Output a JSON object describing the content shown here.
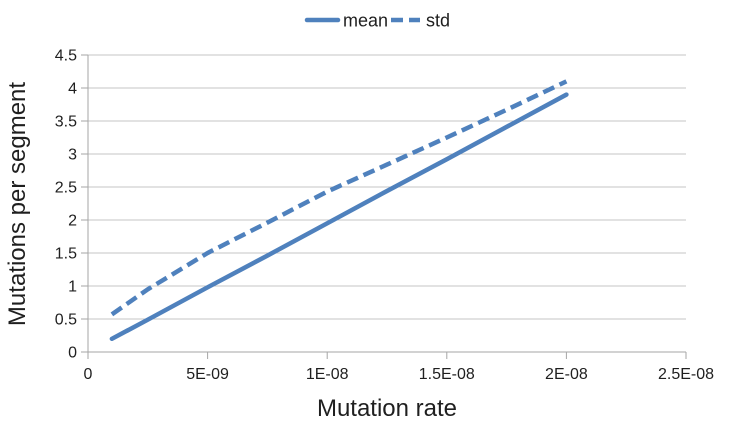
{
  "chart_data": {
    "type": "line",
    "title": "",
    "xlabel": "Mutation rate",
    "ylabel": "Mutations per segment",
    "xlim": [
      0,
      2.5e-08
    ],
    "ylim": [
      0,
      4.5
    ],
    "grid": "horizontal-only",
    "legend_position": "top-center",
    "x_ticks": [
      {
        "value": 0,
        "label": "0"
      },
      {
        "value": 5e-09,
        "label": "5E-09"
      },
      {
        "value": 1e-08,
        "label": "1E-08"
      },
      {
        "value": 1.5e-08,
        "label": "1.5E-08"
      },
      {
        "value": 2e-08,
        "label": "2E-08"
      },
      {
        "value": 2.5e-08,
        "label": "2.5E-08"
      }
    ],
    "y_ticks": [
      {
        "value": 0,
        "label": "0"
      },
      {
        "value": 0.5,
        "label": "0.5"
      },
      {
        "value": 1,
        "label": "1"
      },
      {
        "value": 1.5,
        "label": "1.5"
      },
      {
        "value": 2,
        "label": "2"
      },
      {
        "value": 2.5,
        "label": "2.5"
      },
      {
        "value": 3,
        "label": "3"
      },
      {
        "value": 3.5,
        "label": "3.5"
      },
      {
        "value": 4,
        "label": "4"
      },
      {
        "value": 4.5,
        "label": "4.5"
      }
    ],
    "x": [
      1e-09,
      2.5e-09,
      5e-09,
      7.5e-09,
      1e-08,
      1.25e-08,
      1.5e-08,
      1.75e-08,
      2e-08
    ],
    "series": [
      {
        "name": "mean",
        "line_style": "solid",
        "values": [
          0.2,
          0.49,
          0.98,
          1.46,
          1.95,
          2.44,
          2.92,
          3.41,
          3.9
        ]
      },
      {
        "name": "std",
        "line_style": "dashed",
        "values": [
          0.57,
          0.95,
          1.5,
          1.96,
          2.43,
          2.84,
          3.25,
          3.67,
          4.1
        ]
      }
    ],
    "colors": {
      "series_line": "#4F81BD",
      "gridline": "#C6C6C6",
      "axis": "#A6A6A6",
      "text": "#1F1F1F"
    }
  }
}
